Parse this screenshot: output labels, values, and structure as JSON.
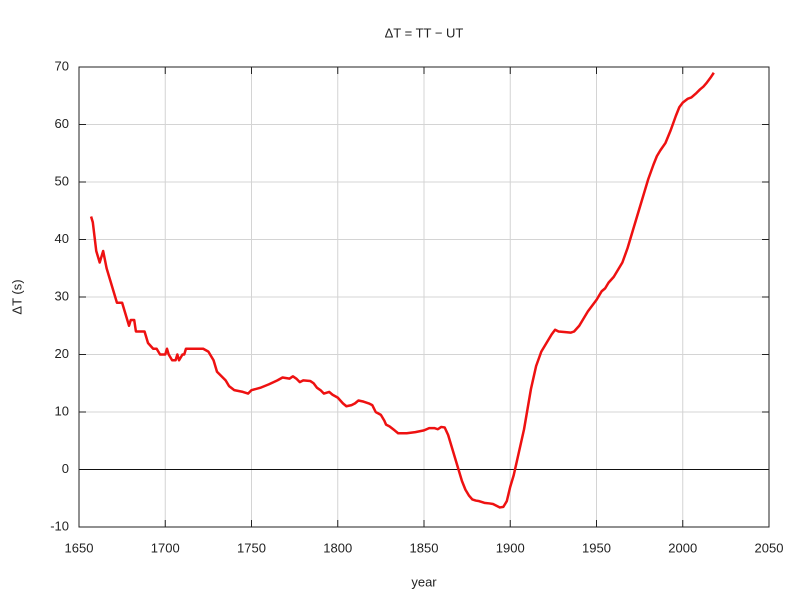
{
  "chart_data": {
    "type": "line",
    "title": "ΔT = TT − UT",
    "x_label": "year",
    "y_label": "ΔT (s)",
    "x": [
      1657,
      1658,
      1660,
      1662,
      1664,
      1666,
      1668,
      1670,
      1672,
      1675,
      1677,
      1679,
      1680,
      1682,
      1683,
      1688,
      1690,
      1693,
      1695,
      1697,
      1700,
      1701,
      1702,
      1704,
      1706,
      1707,
      1708,
      1710,
      1711,
      1712,
      1720,
      1722,
      1725,
      1728,
      1730,
      1735,
      1737,
      1740,
      1745,
      1748,
      1750,
      1755,
      1760,
      1765,
      1768,
      1772,
      1774,
      1776,
      1778,
      1780,
      1784,
      1786,
      1788,
      1790,
      1792,
      1795,
      1797,
      1800,
      1803,
      1805,
      1808,
      1810,
      1812,
      1815,
      1818,
      1820,
      1822,
      1825,
      1827,
      1828,
      1830,
      1833,
      1835,
      1840,
      1845,
      1850,
      1853,
      1856,
      1858,
      1860,
      1862,
      1864,
      1866,
      1868,
      1870,
      1872,
      1874,
      1876,
      1878,
      1880,
      1882,
      1885,
      1888,
      1890,
      1892,
      1894,
      1896,
      1898,
      1900,
      1902,
      1905,
      1908,
      1910,
      1912,
      1915,
      1918,
      1920,
      1924,
      1926,
      1928,
      1932,
      1935,
      1937,
      1940,
      1945,
      1950,
      1953,
      1955,
      1957,
      1960,
      1962,
      1965,
      1968,
      1970,
      1973,
      1976,
      1978,
      1980,
      1983,
      1985,
      1987,
      1990,
      1993,
      1996,
      1998,
      2000,
      2003,
      2005,
      2008,
      2010,
      2012,
      2014,
      2016,
      2018
    ],
    "series": [
      {
        "name": "ΔT",
        "color": "#ee1111",
        "values": [
          44,
          43,
          38,
          36,
          38,
          35,
          33,
          31,
          29,
          29,
          27,
          25,
          26,
          26,
          24,
          24,
          22,
          21,
          21,
          20,
          20,
          21,
          20,
          19,
          19,
          20,
          19,
          20,
          20,
          21,
          21,
          21,
          20.5,
          19,
          17,
          15.5,
          14.5,
          13.8,
          13.5,
          13.2,
          13.8,
          14.2,
          14.8,
          15.5,
          16,
          15.8,
          16.2,
          15.8,
          15.2,
          15.5,
          15.4,
          15,
          14.2,
          13.8,
          13.2,
          13.5,
          13,
          12.5,
          11.5,
          11,
          11.2,
          11.5,
          12,
          11.8,
          11.5,
          11.2,
          10,
          9.5,
          8.5,
          7.8,
          7.5,
          6.8,
          6.3,
          6.3,
          6.5,
          6.8,
          7.2,
          7.2,
          7,
          7.4,
          7.3,
          6,
          4,
          2,
          0,
          -2,
          -3.5,
          -4.5,
          -5.2,
          -5.4,
          -5.5,
          -5.8,
          -5.9,
          -6,
          -6.3,
          -6.6,
          -6.5,
          -5.5,
          -3,
          -1,
          3,
          7,
          10.5,
          14,
          18,
          20.5,
          21.5,
          23.5,
          24.3,
          24,
          23.9,
          23.8,
          24,
          25,
          27.5,
          29.5,
          31,
          31.5,
          32.5,
          33.5,
          34.5,
          36,
          38.5,
          40.5,
          43.5,
          46.5,
          48.5,
          50.5,
          53,
          54.5,
          55.5,
          56.8,
          59,
          61.5,
          63,
          63.8,
          64.5,
          64.7,
          65.5,
          66.1,
          66.6,
          67.3,
          68.1,
          69
        ]
      }
    ],
    "xlim": [
      1650,
      2050
    ],
    "xticks": [
      1650,
      1700,
      1750,
      1800,
      1850,
      1900,
      1950,
      2000,
      2050
    ],
    "ylim": [
      -10,
      70
    ],
    "yticks": [
      -10,
      0,
      10,
      20,
      30,
      40,
      50,
      60,
      70
    ],
    "grid": true,
    "zero_line": true
  }
}
